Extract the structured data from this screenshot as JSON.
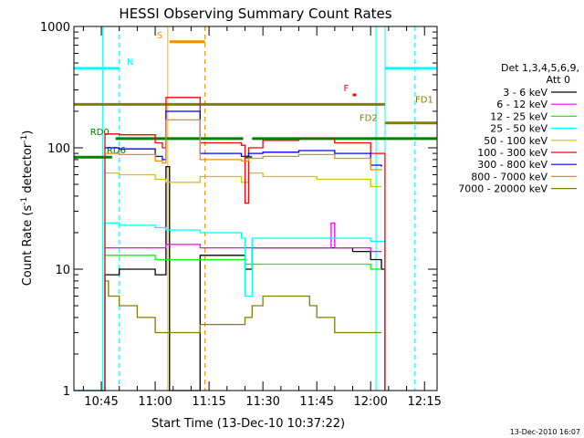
{
  "chart_data": {
    "type": "line",
    "title": "HESSI Observing Summary Count Rates",
    "xlabel": "Start Time (13-Dec-10 10:37:22)",
    "ylabel": "Count Rate (s",
    "ylabel_sup": "-1",
    "ylabel_tail": " detector",
    "ylabel_close": ")",
    "yscale": "log",
    "xlim": [
      "10:37:22",
      "12:18:30"
    ],
    "ylim": [
      1,
      1000
    ],
    "x_ticks": [
      "10:45",
      "11:00",
      "11:15",
      "11:30",
      "11:45",
      "12:00",
      "12:15"
    ],
    "y_ticks": [
      "1",
      "10",
      "100",
      "1000"
    ],
    "footer": "13-Dec-2010 16:07",
    "legend": {
      "header1": "Det 1,3,4,5,6,9,",
      "header2": "Att 0",
      "position": "right"
    },
    "series": [
      {
        "name": "3 - 6 keV",
        "color": "#000000",
        "x": [
          "10:37:22",
          "10:45:20",
          "10:46:00",
          "10:50:00",
          "10:55:00",
          "11:00:00",
          "11:02:00",
          "11:03:00",
          "11:04:00",
          "11:12:00",
          "11:12:30",
          "11:20:00",
          "11:24:00",
          "11:25:00",
          "11:27:00",
          "11:30:00",
          "11:40:00",
          "11:50:00",
          "11:55:00",
          "12:00:00",
          "12:03:00",
          "12:04:00"
        ],
        "y": [
          1,
          1,
          9,
          10,
          10,
          9,
          9,
          70,
          1,
          1,
          13,
          13,
          13,
          10,
          15,
          15,
          15,
          15,
          14,
          12,
          10,
          1
        ]
      },
      {
        "name": "6 - 12 keV",
        "color": "#ff00ff",
        "x": [
          "10:46:00",
          "10:50:00",
          "11:00:00",
          "11:03:00",
          "11:12:30",
          "11:25:00",
          "11:30:00",
          "11:45:00",
          "11:48:00",
          "11:49:00",
          "11:50:00",
          "12:00:00",
          "12:03:00"
        ],
        "y": [
          15,
          15,
          15,
          16,
          15,
          15,
          15,
          15,
          15,
          24,
          15,
          14,
          14
        ]
      },
      {
        "name": "12 - 25 keV",
        "color": "#00ff00",
        "x": [
          "10:46:00",
          "10:50:00",
          "11:00:00",
          "11:03:00",
          "11:12:30",
          "11:25:00",
          "11:30:00",
          "11:45:00",
          "12:00:00",
          "12:03:00"
        ],
        "y": [
          13,
          13,
          12,
          12,
          12,
          11,
          11,
          11,
          10,
          10
        ]
      },
      {
        "name": "25 - 50 keV",
        "color": "#00ffff",
        "x": [
          "10:37:22",
          "10:45:20",
          "10:46:00",
          "10:50:00",
          "11:00:00",
          "11:03:00",
          "11:12:30",
          "11:24:00",
          "11:25:00",
          "11:26:00",
          "11:27:00",
          "11:40:00",
          "11:50:00",
          "12:00:00",
          "12:03:00",
          "12:04:00"
        ],
        "y": [
          1,
          1,
          24,
          23,
          22,
          21,
          20,
          18,
          6,
          6,
          18,
          18,
          18,
          17,
          17,
          1
        ]
      },
      {
        "name": "50 - 100 keV",
        "color": "#d4c400",
        "x": [
          "10:46:00",
          "10:50:00",
          "11:00:00",
          "11:03:00",
          "11:12:30",
          "11:24:00",
          "11:26:00",
          "11:30:00",
          "11:45:00",
          "12:00:00",
          "12:03:00"
        ],
        "y": [
          62,
          60,
          55,
          52,
          58,
          52,
          62,
          58,
          55,
          48,
          48
        ]
      },
      {
        "name": "100 - 300 keV",
        "color": "#ff0000",
        "x": [
          "10:45:20",
          "10:46:00",
          "10:50:00",
          "11:00:00",
          "11:02:00",
          "11:03:00",
          "11:12:30",
          "11:24:00",
          "11:25:00",
          "11:26:00",
          "11:30:00",
          "11:40:00",
          "11:50:00",
          "12:00:00",
          "12:03:00",
          "12:04:00"
        ],
        "y": [
          1,
          130,
          128,
          110,
          100,
          260,
          110,
          105,
          35,
          100,
          115,
          120,
          110,
          90,
          90,
          1
        ]
      },
      {
        "name": "300 - 800 keV",
        "color": "#0000ff",
        "x": [
          "10:46:00",
          "10:50:00",
          "11:00:00",
          "11:02:00",
          "11:03:00",
          "11:12:30",
          "11:24:00",
          "11:26:00",
          "11:30:00",
          "11:40:00",
          "11:50:00",
          "12:00:00",
          "12:03:00"
        ],
        "y": [
          100,
          98,
          85,
          80,
          200,
          90,
          85,
          90,
          92,
          95,
          90,
          72,
          70
        ]
      },
      {
        "name": "800 - 7000 keV",
        "color": "#ff8c00",
        "x": [
          "10:46:00",
          "10:50:00",
          "11:00:00",
          "11:02:00",
          "11:03:00",
          "11:12:30",
          "11:24:00",
          "11:26:00",
          "11:30:00",
          "11:40:00",
          "11:50:00",
          "12:00:00",
          "12:03:00"
        ],
        "y": [
          90,
          88,
          78,
          75,
          170,
          80,
          78,
          82,
          85,
          88,
          82,
          66,
          65
        ]
      },
      {
        "name": "7000 - 20000 keV",
        "color": "#808000",
        "x": [
          "10:46:00",
          "10:47:00",
          "10:50:00",
          "10:55:00",
          "11:00:00",
          "11:03:00",
          "11:12:30",
          "11:20:00",
          "11:25:00",
          "11:27:00",
          "11:30:00",
          "11:40:00",
          "11:43:00",
          "11:45:00",
          "11:50:00",
          "11:55:00",
          "12:00:00",
          "12:03:00"
        ],
        "y": [
          8,
          6,
          5,
          4,
          3,
          3,
          3.5,
          3.5,
          4,
          5,
          6,
          6,
          5,
          4,
          3,
          3,
          3,
          3
        ]
      }
    ],
    "vertical_markers": [
      {
        "time": "10:45:20",
        "color": "#00ffff",
        "style": "solid"
      },
      {
        "time": "10:50:00",
        "color": "#00ffff",
        "style": "dashed"
      },
      {
        "time": "11:03:30",
        "color": "#d4c400",
        "style": "solid"
      },
      {
        "time": "11:13:50",
        "color": "#ff8c00",
        "style": "dashed"
      },
      {
        "time": "12:01:30",
        "color": "#00ffff",
        "style": "solid"
      },
      {
        "time": "12:04:00",
        "color": "#00ffff",
        "style": "solid"
      },
      {
        "time": "12:12:20",
        "color": "#00ffff",
        "style": "dashed"
      }
    ],
    "flag_bars": [
      {
        "label": "N",
        "color": "#00ffff",
        "start": "10:37:22",
        "end": "10:50:00",
        "level": 0.885
      },
      {
        "label": "S",
        "color": "#ff8c00",
        "start": "11:04:00",
        "end": "11:13:50",
        "level": 0.958
      },
      {
        "label": "F",
        "color": "#ff0000",
        "start": "11:55:00",
        "end": "11:56:00",
        "level": 0.812
      },
      {
        "label": "",
        "color": "#00ffff",
        "start": "12:04:00",
        "end": "12:18:30",
        "level": 0.885
      },
      {
        "label": "FD1",
        "color": "#808000",
        "start": "10:37:22",
        "end": "12:04:00",
        "level": 0.786
      },
      {
        "label": "FD2",
        "color": "#808000",
        "start": "12:04:00",
        "end": "12:18:30",
        "level": 0.735
      },
      {
        "label": "RD0",
        "color": "#008000",
        "start": "10:49:00",
        "end": "11:24:30",
        "level": 0.692
      },
      {
        "label": "",
        "color": "#008000",
        "start": "11:27:00",
        "end": "12:18:30",
        "level": 0.692
      },
      {
        "label": "RD6",
        "color": "#008000",
        "start": "10:37:22",
        "end": "10:48:00",
        "level": 0.641
      },
      {
        "label": "",
        "color": "#008000",
        "start": "11:25:00",
        "end": "11:27:00",
        "level": 0.641
      }
    ]
  }
}
